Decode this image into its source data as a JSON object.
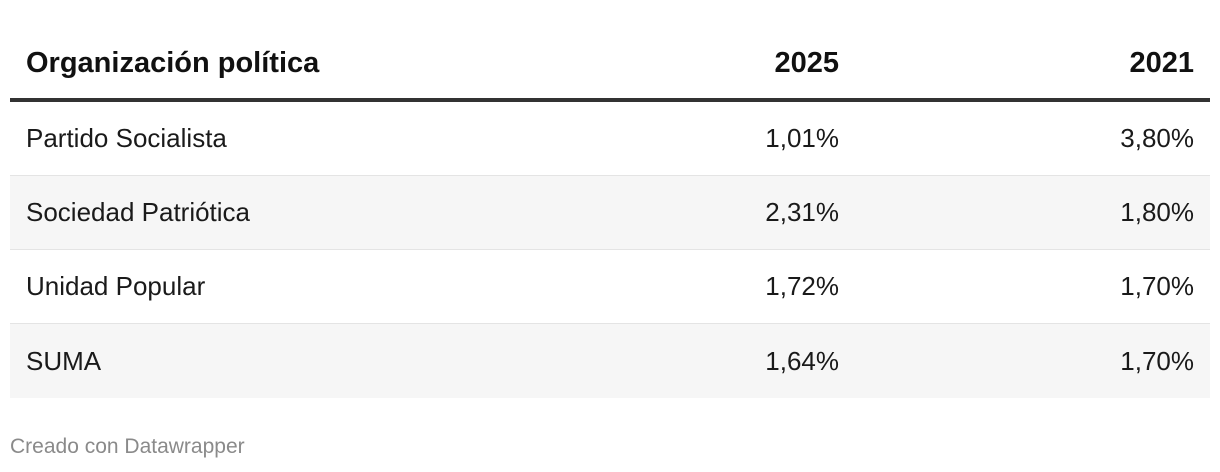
{
  "chart_data": {
    "type": "table",
    "columns": [
      "Organización política",
      "2025",
      "2021"
    ],
    "rows": [
      {
        "name": "Partido Socialista",
        "v2025": "1,01%",
        "v2021": "3,80%"
      },
      {
        "name": "Sociedad Patriótica",
        "v2025": "2,31%",
        "v2021": "1,80%"
      },
      {
        "name": "Unidad Popular",
        "v2025": "1,72%",
        "v2021": "1,70%"
      },
      {
        "name": "SUMA",
        "v2025": "1,64%",
        "v2021": "1,70%"
      }
    ],
    "values_numeric": {
      "2025": [
        1.01,
        2.31,
        1.72,
        1.64
      ],
      "2021": [
        3.8,
        1.8,
        1.7,
        1.7
      ]
    }
  },
  "footer": {
    "credit": "Creado con Datawrapper"
  },
  "colors": {
    "header_rule": "#333333",
    "stripe": "#f6f6f6",
    "row_divider": "#e4e4e4",
    "footer_text": "#8a8a8a"
  }
}
